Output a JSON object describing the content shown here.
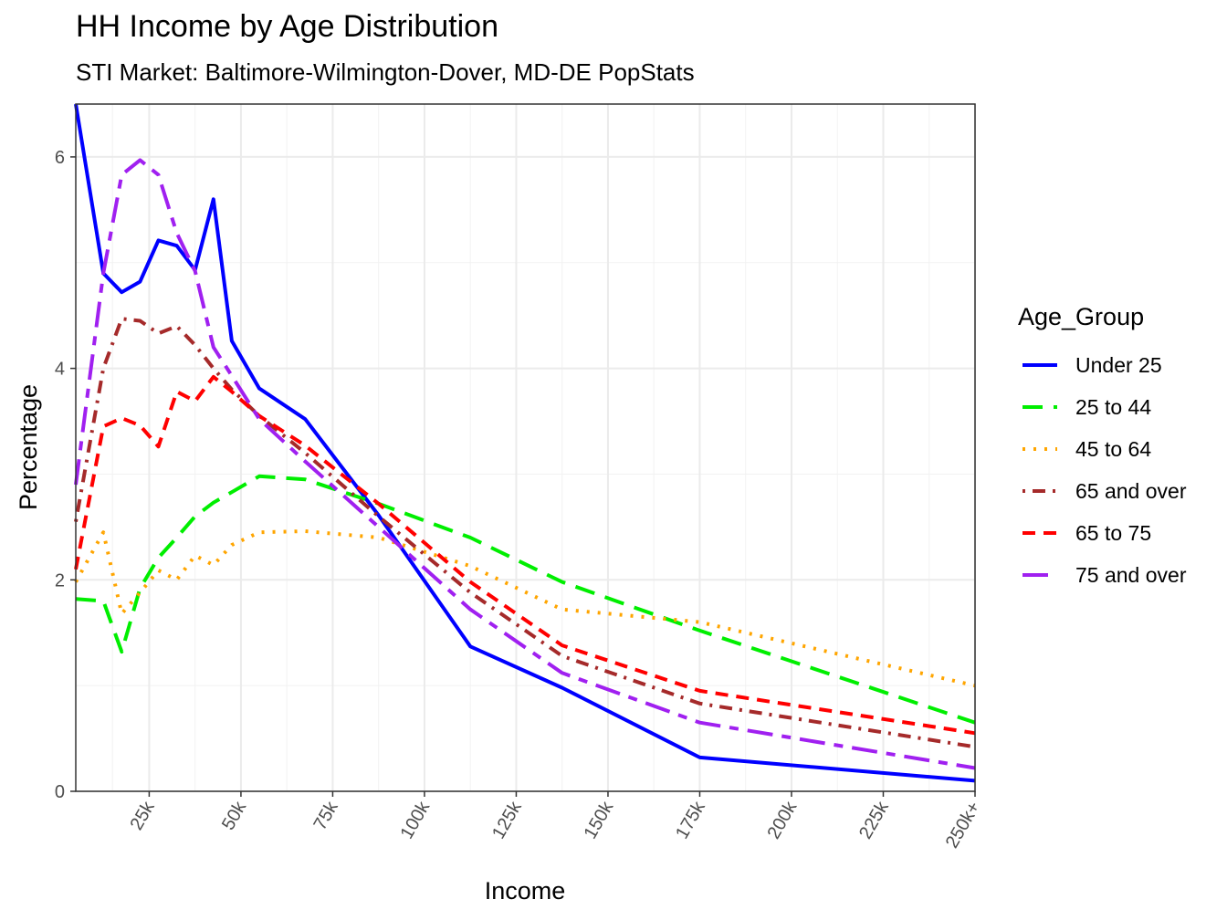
{
  "chart_data": {
    "type": "line",
    "title": "HH Income by Age Distribution",
    "subtitle": "STI Market: Baltimore-Wilmington-Dover, MD-DE PopStats",
    "xlabel": "Income",
    "ylabel": "Percentage",
    "xlim": [
      5,
      250
    ],
    "ylim": [
      0,
      6.5
    ],
    "x_ticks": [
      {
        "value": 25,
        "label": "25k"
      },
      {
        "value": 50,
        "label": "50k"
      },
      {
        "value": 75,
        "label": "75k"
      },
      {
        "value": 100,
        "label": "100k"
      },
      {
        "value": 125,
        "label": "125k"
      },
      {
        "value": 150,
        "label": "150k"
      },
      {
        "value": 175,
        "label": "175k"
      },
      {
        "value": 200,
        "label": "200k"
      },
      {
        "value": 225,
        "label": "225k"
      },
      {
        "value": 250,
        "label": "250k+"
      }
    ],
    "y_ticks": [
      0,
      2,
      4,
      6
    ],
    "grid": true,
    "legend": {
      "title": "Age_Group",
      "position": "right"
    },
    "series": [
      {
        "name": "Under 25",
        "color": "#0000ff",
        "dash": "solid",
        "x": [
          5,
          12.5,
          17.5,
          22.5,
          27.5,
          32.5,
          37.5,
          42.5,
          47.5,
          55,
          67.5,
          87.5,
          112.5,
          137.5,
          175,
          250
        ],
        "y": [
          6.5,
          4.9,
          4.72,
          4.82,
          5.21,
          5.16,
          4.93,
          5.6,
          4.26,
          3.81,
          3.52,
          2.61,
          1.37,
          0.98,
          0.32,
          0.1
        ]
      },
      {
        "name": "25 to 44",
        "color": "#00ee00",
        "dash": "longdash",
        "x": [
          5,
          12.5,
          17.5,
          22.5,
          27.5,
          32.5,
          37.5,
          42.5,
          47.5,
          55,
          67.5,
          87.5,
          112.5,
          137.5,
          175,
          250
        ],
        "y": [
          1.82,
          1.8,
          1.32,
          1.92,
          2.21,
          2.4,
          2.6,
          2.73,
          2.83,
          2.98,
          2.95,
          2.72,
          2.4,
          1.98,
          1.52,
          0.65
        ]
      },
      {
        "name": "45 to 64",
        "color": "#ffa500",
        "dash": "dotted",
        "x": [
          5,
          12.5,
          17.5,
          22.5,
          27.5,
          32.5,
          37.5,
          42.5,
          47.5,
          55,
          67.5,
          87.5,
          112.5,
          137.5,
          175,
          250
        ],
        "y": [
          1.98,
          2.45,
          1.68,
          1.88,
          2.09,
          2.0,
          2.23,
          2.14,
          2.33,
          2.45,
          2.46,
          2.4,
          2.13,
          1.72,
          1.6,
          1.0
        ]
      },
      {
        "name": "65 and over",
        "color": "#a52a2a",
        "dash": "dotdash",
        "x": [
          5,
          12.5,
          17.5,
          22.5,
          27.5,
          32.5,
          37.5,
          42.5,
          47.5,
          55,
          67.5,
          87.5,
          112.5,
          137.5,
          175,
          250
        ],
        "y": [
          2.55,
          4.0,
          4.47,
          4.45,
          4.33,
          4.4,
          4.22,
          4.0,
          3.8,
          3.55,
          3.2,
          2.6,
          1.88,
          1.28,
          0.83,
          0.42
        ]
      },
      {
        "name": "65 to 75",
        "color": "#ff0000",
        "dash": "dashed",
        "x": [
          5,
          12.5,
          17.5,
          22.5,
          27.5,
          32.5,
          37.5,
          42.5,
          47.5,
          55,
          67.5,
          87.5,
          112.5,
          137.5,
          175,
          250
        ],
        "y": [
          2.1,
          3.45,
          3.53,
          3.46,
          3.26,
          3.78,
          3.69,
          3.92,
          3.78,
          3.55,
          3.27,
          2.72,
          1.98,
          1.38,
          0.95,
          0.55
        ]
      },
      {
        "name": "75 and over",
        "color": "#a020f0",
        "dash": "twodash",
        "x": [
          5,
          12.5,
          17.5,
          22.5,
          27.5,
          32.5,
          37.5,
          42.5,
          47.5,
          55,
          67.5,
          87.5,
          112.5,
          137.5,
          175,
          250
        ],
        "y": [
          2.9,
          4.9,
          5.83,
          5.97,
          5.83,
          5.28,
          4.92,
          4.2,
          3.93,
          3.52,
          3.12,
          2.5,
          1.72,
          1.12,
          0.65,
          0.22
        ]
      }
    ]
  }
}
